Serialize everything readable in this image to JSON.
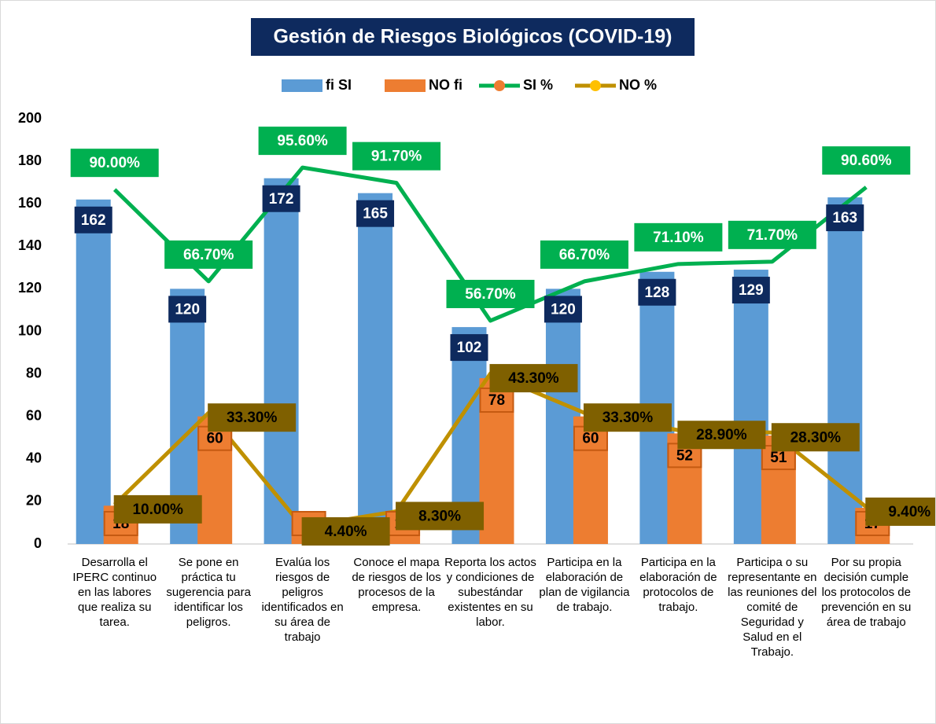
{
  "chart_data": {
    "type": "bar_line",
    "title": "Gestión de Riesgos Biológicos (COVID-19)",
    "categories": [
      "Desarrolla el IPERC continuo en las labores que realiza su tarea.",
      "Se pone en práctica tu sugerencia para identificar los peligros.",
      "Evalúa los riesgos de peligros identificados en su área de trabajo",
      "Conoce el mapa de riesgos de los procesos de la empresa.",
      "Reporta los actos y condiciones de subestándar existentes en su labor.",
      "Participa en la elaboración de plan de vigilancia de trabajo.",
      "Participa en la elaboración de protocolos de trabajo.",
      "Participa o su representante en las reuniones del comité de Seguridad y Salud en el Trabajo.",
      "Por su propia decisión cumple los protocolos de prevención en su área de trabajo"
    ],
    "series": [
      {
        "name": "fi SI",
        "kind": "bar",
        "color": "#5b9bd5",
        "values": [
          162,
          120,
          172,
          165,
          102,
          120,
          128,
          129,
          163
        ]
      },
      {
        "name": "NO fi",
        "kind": "bar",
        "color": "#ed7d31",
        "values": [
          18,
          60,
          8,
          15,
          78,
          60,
          52,
          51,
          17
        ]
      },
      {
        "name": "SI %",
        "kind": "line",
        "axis": "y2",
        "color": "#00b050",
        "values": [
          90.0,
          66.7,
          95.6,
          91.7,
          56.7,
          66.7,
          71.1,
          71.7,
          90.6
        ],
        "value_labels": [
          "90.00%",
          "66.70%",
          "95.60%",
          "91.70%",
          "56.70%",
          "66.70%",
          "71.10%",
          "71.70%",
          "90.60%"
        ]
      },
      {
        "name": "NO %",
        "kind": "line",
        "axis": "y2",
        "color": "#bf9000",
        "values": [
          10.0,
          33.3,
          4.4,
          8.3,
          43.3,
          33.3,
          28.9,
          28.3,
          9.4
        ],
        "value_labels": [
          "10.00%",
          "33.30%",
          "4.40%",
          "8.30%",
          "43.30%",
          "33.30%",
          "28.90%",
          "28.30%",
          "9.40%"
        ]
      }
    ],
    "ylim": [
      0,
      200
    ],
    "yticks": [
      0,
      20,
      40,
      60,
      80,
      100,
      120,
      140,
      160,
      180,
      200
    ],
    "y2lim": [
      0,
      108
    ],
    "grid": false
  }
}
